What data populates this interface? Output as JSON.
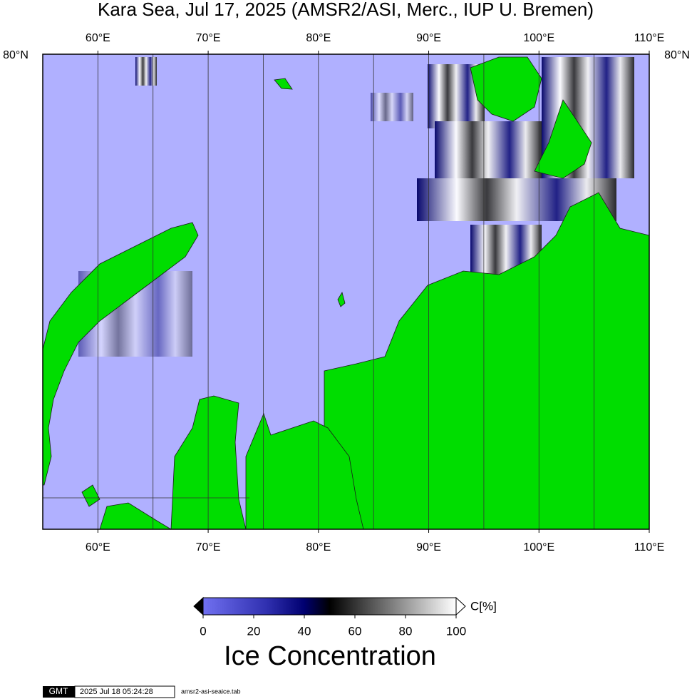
{
  "title": "Kara Sea, Jul 17, 2025 (AMSR2/ASI, Merc., IUP U. Bremen)",
  "map": {
    "lonlim": [
      55,
      110
    ],
    "lon_ticks": [
      {
        "value": 60,
        "label": "60°E"
      },
      {
        "value": 70,
        "label": "70°E"
      },
      {
        "value": 80,
        "label": "80°E"
      },
      {
        "value": 90,
        "label": "90°E"
      },
      {
        "value": 100,
        "label": "100°E"
      },
      {
        "value": 110,
        "label": "110°E"
      }
    ],
    "lon_gridlines": [
      60,
      65,
      70,
      75,
      80,
      85,
      90,
      95,
      100,
      105
    ],
    "lat_label": "80°N"
  },
  "colorbar": {
    "range": [
      0,
      100
    ],
    "ticks": [
      0,
      20,
      40,
      60,
      80,
      100
    ],
    "unit": "C[%]",
    "title": "Ice Concentration"
  },
  "footer": {
    "logo": "GMT",
    "timestamp": "2025 Jul 18 05:24:28",
    "file": "amsr2-asi-seaice.tab"
  }
}
